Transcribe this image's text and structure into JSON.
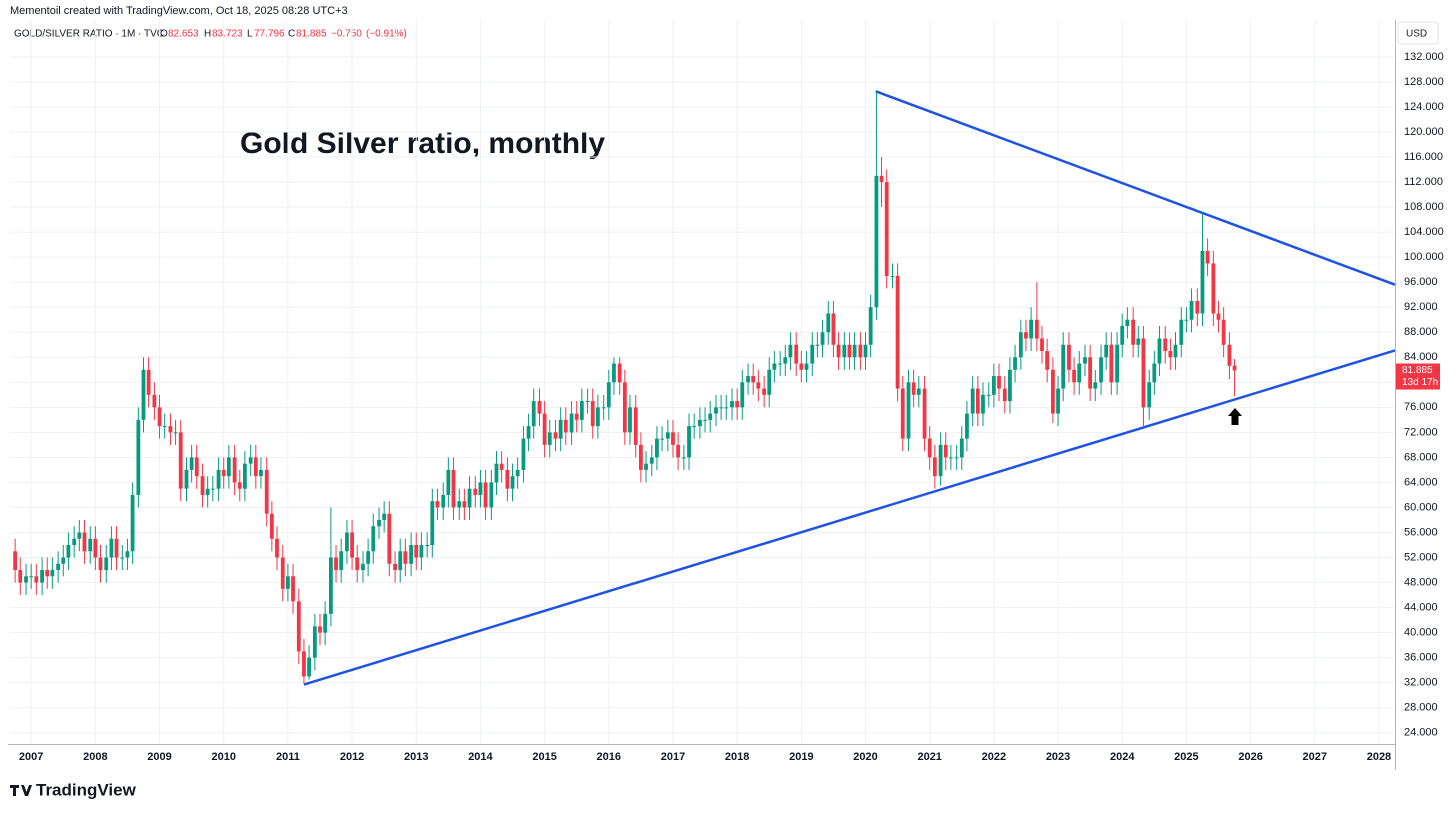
{
  "header": {
    "credit": "Mementoil created with TradingView.com, Oct 18, 2025 08:28 UTC+3"
  },
  "chart_data": {
    "type": "candlestick",
    "title": "Gold Silver ratio, monthly",
    "symbol": "GOLD/SILVER RATIO · 1M · TVC",
    "legend_labels": {
      "open": "O",
      "high": "H",
      "low": "L",
      "close": "C"
    },
    "change": {
      "value": -0.75,
      "label": "−0.750"
    },
    "change_pct": {
      "value": -0.91,
      "label": "(−0.91%)"
    },
    "currency": "USD",
    "countdown": "13d 17h",
    "logo": "TradingView",
    "up_color": "#089981",
    "down_color": "#f23645",
    "trendline_color": "#1e53e5",
    "grid": true,
    "x": [
      2006.75,
      2006.83,
      2006.92,
      2007,
      2007.08,
      2007.17,
      2007.25,
      2007.33,
      2007.42,
      2007.5,
      2007.58,
      2007.67,
      2007.75,
      2007.83,
      2007.92,
      2008,
      2008.08,
      2008.17,
      2008.25,
      2008.33,
      2008.42,
      2008.5,
      2008.58,
      2008.67,
      2008.75,
      2008.83,
      2008.92,
      2009,
      2009.08,
      2009.17,
      2009.25,
      2009.33,
      2009.42,
      2009.5,
      2009.58,
      2009.67,
      2009.75,
      2009.83,
      2009.92,
      2010,
      2010.08,
      2010.17,
      2010.25,
      2010.33,
      2010.42,
      2010.5,
      2010.58,
      2010.67,
      2010.75,
      2010.83,
      2010.92,
      2011,
      2011.08,
      2011.17,
      2011.25,
      2011.33,
      2011.42,
      2011.5,
      2011.58,
      2011.67,
      2011.75,
      2011.83,
      2011.92,
      2012,
      2012.08,
      2012.17,
      2012.25,
      2012.33,
      2012.42,
      2012.5,
      2012.58,
      2012.67,
      2012.75,
      2012.83,
      2012.92,
      2013,
      2013.08,
      2013.17,
      2013.25,
      2013.33,
      2013.42,
      2013.5,
      2013.58,
      2013.67,
      2013.75,
      2013.83,
      2013.92,
      2014,
      2014.08,
      2014.17,
      2014.25,
      2014.33,
      2014.42,
      2014.5,
      2014.58,
      2014.67,
      2014.75,
      2014.83,
      2014.92,
      2015,
      2015.08,
      2015.17,
      2015.25,
      2015.33,
      2015.42,
      2015.5,
      2015.58,
      2015.67,
      2015.75,
      2015.83,
      2015.92,
      2016,
      2016.08,
      2016.17,
      2016.25,
      2016.33,
      2016.42,
      2016.5,
      2016.58,
      2016.67,
      2016.75,
      2016.83,
      2016.92,
      2017,
      2017.08,
      2017.17,
      2017.25,
      2017.33,
      2017.42,
      2017.5,
      2017.58,
      2017.67,
      2017.75,
      2017.83,
      2017.92,
      2018,
      2018.08,
      2018.17,
      2018.25,
      2018.33,
      2018.42,
      2018.5,
      2018.58,
      2018.67,
      2018.75,
      2018.83,
      2018.92,
      2019,
      2019.08,
      2019.17,
      2019.25,
      2019.33,
      2019.42,
      2019.5,
      2019.58,
      2019.67,
      2019.75,
      2019.83,
      2019.92,
      2020,
      2020.08,
      2020.17,
      2020.25,
      2020.33,
      2020.42,
      2020.5,
      2020.58,
      2020.67,
      2020.75,
      2020.83,
      2020.92,
      2021,
      2021.08,
      2021.17,
      2021.25,
      2021.33,
      2021.42,
      2021.5,
      2021.58,
      2021.67,
      2021.75,
      2021.83,
      2021.92,
      2022,
      2022.08,
      2022.17,
      2022.25,
      2022.33,
      2022.42,
      2022.5,
      2022.58,
      2022.67,
      2022.75,
      2022.83,
      2022.92,
      2023,
      2023.08,
      2023.17,
      2023.25,
      2023.33,
      2023.42,
      2023.5,
      2023.58,
      2023.67,
      2023.75,
      2023.83,
      2023.92,
      2024,
      2024.08,
      2024.17,
      2024.25,
      2024.33,
      2024.42,
      2024.5,
      2024.58,
      2024.67,
      2024.75,
      2024.83,
      2024.92,
      2025,
      2025.08,
      2025.17,
      2025.25,
      2025.33,
      2025.42,
      2025.5,
      2025.58,
      2025.67,
      2025.75
    ],
    "open": [
      53,
      50,
      48,
      49,
      49,
      48,
      50,
      49,
      50,
      51,
      52,
      54,
      55,
      56,
      53,
      55,
      52,
      50,
      52,
      55,
      52,
      52,
      53,
      62,
      74,
      82,
      78,
      76,
      73,
      73,
      72,
      72,
      63,
      66,
      68,
      65,
      62,
      63,
      63,
      66,
      65,
      68,
      64,
      63,
      67,
      68,
      65,
      66,
      59,
      55,
      52,
      47,
      49,
      45,
      37,
      33,
      36,
      41,
      40,
      43,
      52,
      50,
      53,
      56,
      52,
      50,
      51,
      53,
      57,
      58,
      59,
      51,
      50,
      53,
      51,
      54,
      52,
      54,
      54,
      61,
      60,
      62,
      66,
      60,
      61,
      60,
      63,
      62,
      64,
      60,
      64,
      67,
      66,
      63,
      65,
      66,
      71,
      73,
      77,
      75,
      70,
      72,
      71,
      74,
      72,
      75,
      74,
      77,
      77,
      73,
      76,
      76,
      80,
      83,
      80,
      72,
      76,
      70,
      66,
      67,
      68,
      71,
      71,
      72,
      70,
      68,
      68,
      73,
      73,
      74,
      74,
      75,
      76,
      76,
      76,
      77,
      76,
      80,
      81,
      80,
      79,
      78,
      82,
      83,
      83,
      84,
      86,
      83,
      82,
      83,
      86,
      86,
      88,
      91,
      86,
      84,
      86,
      84,
      86,
      84,
      86,
      92,
      113,
      112,
      97,
      97,
      79,
      71,
      80,
      78,
      79,
      71,
      68,
      65,
      70,
      68,
      68,
      68,
      71,
      75,
      79,
      75,
      78,
      78,
      81,
      79,
      77,
      82,
      84,
      88,
      87,
      90,
      87,
      85,
      82,
      75,
      79,
      86,
      82,
      80,
      83,
      84,
      79,
      80,
      84,
      86,
      80,
      86,
      89,
      90,
      86,
      87,
      76,
      80,
      83,
      87,
      85,
      84,
      86,
      90,
      90,
      93,
      91,
      101,
      99,
      91,
      90,
      86,
      82.653
    ],
    "high": [
      55,
      52,
      51,
      51,
      51,
      52,
      52,
      52,
      53,
      54,
      56,
      57,
      58,
      58,
      57,
      57,
      54,
      54,
      57,
      57,
      54,
      55,
      64,
      76,
      84,
      84,
      80,
      78,
      75,
      75,
      74,
      74,
      68,
      70,
      70,
      67,
      65,
      65,
      68,
      68,
      70,
      70,
      66,
      69,
      70,
      70,
      68,
      68,
      61,
      57,
      54,
      51,
      51,
      47,
      39,
      38,
      43,
      43,
      45,
      60,
      54,
      55,
      58,
      58,
      54,
      53,
      55,
      59,
      60,
      61,
      61,
      53,
      55,
      55,
      56,
      56,
      56,
      56,
      63,
      63,
      64,
      68,
      68,
      63,
      63,
      65,
      65,
      66,
      66,
      66,
      69,
      69,
      68,
      67,
      68,
      73,
      75,
      79,
      79,
      77,
      74,
      74,
      76,
      76,
      77,
      77,
      79,
      79,
      79,
      78,
      78,
      82,
      84,
      84,
      82,
      78,
      78,
      72,
      69,
      70,
      73,
      73,
      74,
      74,
      72,
      70,
      75,
      75,
      76,
      76,
      77,
      78,
      78,
      78,
      79,
      79,
      82,
      83,
      83,
      82,
      81,
      84,
      85,
      85,
      86,
      88,
      88,
      85,
      85,
      88,
      88,
      90,
      93,
      93,
      88,
      88,
      88,
      88,
      88,
      88,
      94,
      126.5,
      116,
      114,
      99,
      99,
      81,
      82,
      82,
      81,
      81,
      73,
      70,
      72,
      72,
      70,
      70,
      73,
      77,
      81,
      81,
      80,
      80,
      83,
      83,
      81,
      84,
      86,
      90,
      90,
      92,
      96,
      89,
      87,
      84,
      81,
      88,
      88,
      84,
      85,
      86,
      86,
      82,
      86,
      88,
      88,
      88,
      91,
      92,
      92,
      89,
      89,
      82,
      85,
      89,
      89,
      87,
      88,
      92,
      92,
      95,
      95,
      107,
      103,
      101,
      93,
      92,
      88,
      83.723
    ],
    "low": [
      48,
      46,
      46,
      47,
      46,
      46,
      47,
      47,
      48,
      49,
      50,
      52,
      53,
      51,
      51,
      50,
      48,
      48,
      50,
      50,
      50,
      50,
      51,
      60,
      72,
      76,
      74,
      71,
      71,
      70,
      70,
      61,
      61,
      64,
      63,
      60,
      60,
      61,
      61,
      63,
      63,
      62,
      61,
      61,
      65,
      63,
      63,
      57,
      53,
      50,
      45,
      45,
      43,
      35,
      31.8,
      32.5,
      34,
      38,
      38,
      41,
      48,
      48,
      51,
      50,
      48,
      48,
      49,
      51,
      55,
      56,
      49,
      48,
      48,
      49,
      49,
      50,
      50,
      52,
      52,
      58,
      58,
      60,
      58,
      58,
      58,
      58,
      60,
      60,
      58,
      58,
      62,
      64,
      61,
      61,
      63,
      64,
      69,
      71,
      73,
      68,
      68,
      69,
      69,
      70,
      70,
      72,
      72,
      75,
      71,
      71,
      74,
      74,
      78,
      78,
      70,
      70,
      68,
      64,
      64,
      65,
      66,
      69,
      69,
      68,
      66,
      66,
      66,
      71,
      71,
      72,
      72,
      73,
      74,
      74,
      74,
      74,
      74,
      78,
      78,
      77,
      76,
      76,
      80,
      81,
      81,
      82,
      81,
      80,
      80,
      81,
      84,
      84,
      86,
      84,
      82,
      82,
      82,
      82,
      82,
      82,
      84,
      90,
      108,
      95,
      95,
      77,
      69,
      69,
      76,
      76,
      69,
      66,
      63,
      63.5,
      66,
      66,
      66,
      66,
      69,
      73,
      73,
      73,
      76,
      76,
      77,
      75,
      75,
      80,
      82,
      85,
      85,
      85,
      83,
      80,
      73.5,
      73,
      77,
      80,
      78,
      78,
      81,
      77,
      77,
      78,
      82,
      78,
      78,
      84,
      87,
      84,
      84,
      73,
      74,
      78,
      81,
      83,
      82,
      82,
      84,
      88,
      88,
      89,
      89,
      97,
      89,
      88,
      84,
      80.5,
      77.796
    ],
    "close": [
      50,
      48,
      49,
      49,
      48,
      50,
      49,
      50,
      51,
      52,
      54,
      55,
      56,
      53,
      55,
      52,
      50,
      52,
      55,
      52,
      52,
      53,
      62,
      74,
      82,
      78,
      76,
      73,
      73,
      72,
      72,
      63,
      66,
      68,
      65,
      62,
      63,
      63,
      66,
      65,
      68,
      64,
      63,
      67,
      68,
      65,
      66,
      59,
      55,
      52,
      47,
      49,
      45,
      37,
      33,
      36,
      41,
      40,
      43,
      52,
      50,
      53,
      56,
      52,
      50,
      51,
      53,
      57,
      58,
      59,
      51,
      50,
      53,
      51,
      54,
      52,
      54,
      54,
      61,
      60,
      62,
      66,
      60,
      61,
      60,
      63,
      62,
      64,
      60,
      64,
      67,
      66,
      63,
      65,
      66,
      71,
      73,
      77,
      75,
      70,
      72,
      71,
      74,
      72,
      75,
      74,
      77,
      77,
      73,
      76,
      76,
      80,
      83,
      80,
      72,
      76,
      70,
      66,
      67,
      68,
      71,
      71,
      72,
      70,
      68,
      68,
      73,
      73,
      74,
      74,
      75,
      76,
      76,
      76,
      77,
      76,
      80,
      81,
      80,
      79,
      78,
      82,
      83,
      83,
      84,
      86,
      83,
      82,
      83,
      86,
      86,
      88,
      91,
      86,
      84,
      86,
      84,
      86,
      84,
      86,
      92,
      113,
      112,
      97,
      97,
      79,
      71,
      80,
      78,
      79,
      71,
      68,
      65,
      70,
      68,
      68,
      68,
      71,
      75,
      79,
      75,
      78,
      78,
      81,
      79,
      77,
      82,
      84,
      88,
      87,
      90,
      87,
      85,
      82,
      75,
      79,
      86,
      82,
      80,
      83,
      84,
      79,
      80,
      84,
      86,
      80,
      86,
      89,
      90,
      86,
      87,
      76,
      80,
      83,
      87,
      85,
      84,
      86,
      90,
      90,
      93,
      91,
      101,
      99,
      91,
      90,
      86,
      82.635,
      81.885
    ],
    "trendlines": [
      {
        "x": [
          2020.16,
          2028.25
        ],
        "y": [
          126.5,
          95.6
        ]
      },
      {
        "x": [
          2011.25,
          2028.25
        ],
        "y": [
          31.7,
          85.1
        ]
      }
    ],
    "xlim": [
      2006.67,
      2028.25
    ],
    "xticks": [
      2007,
      2008,
      2009,
      2010,
      2011,
      2012,
      2013,
      2014,
      2015,
      2016,
      2017,
      2018,
      2019,
      2020,
      2021,
      2022,
      2023,
      2024,
      2025,
      2026,
      2027,
      2028
    ],
    "ylim": [
      22.2,
      137.9
    ],
    "yticks": [
      {
        "value": 24,
        "label": "24.000"
      },
      {
        "value": 28,
        "label": "28.000"
      },
      {
        "value": 32,
        "label": "32.000"
      },
      {
        "value": 36,
        "label": "36.000"
      },
      {
        "value": 40,
        "label": "40.000"
      },
      {
        "value": 44,
        "label": "44.000"
      },
      {
        "value": 48,
        "label": "48.000"
      },
      {
        "value": 52,
        "label": "52.000"
      },
      {
        "value": 56,
        "label": "56.000"
      },
      {
        "value": 60,
        "label": "60.000"
      },
      {
        "value": 64,
        "label": "64.000"
      },
      {
        "value": 68,
        "label": "68.000"
      },
      {
        "value": 72,
        "label": "72.000"
      },
      {
        "value": 76,
        "label": "76.000"
      },
      {
        "value": 80,
        "label": "80.000"
      },
      {
        "value": 84,
        "label": "84.000"
      },
      {
        "value": 88,
        "label": "88.000"
      },
      {
        "value": 92,
        "label": "92.000"
      },
      {
        "value": 96,
        "label": "96.000"
      },
      {
        "value": 100,
        "label": "100.000"
      },
      {
        "value": 104,
        "label": "104.000"
      },
      {
        "value": 108,
        "label": "108.000"
      },
      {
        "value": 112,
        "label": "112.000"
      },
      {
        "value": 116,
        "label": "116.000"
      },
      {
        "value": 120,
        "label": "120.000"
      },
      {
        "value": 124,
        "label": "124.000"
      },
      {
        "value": 128,
        "label": "128.000"
      },
      {
        "value": 132,
        "label": "132.000"
      }
    ]
  }
}
